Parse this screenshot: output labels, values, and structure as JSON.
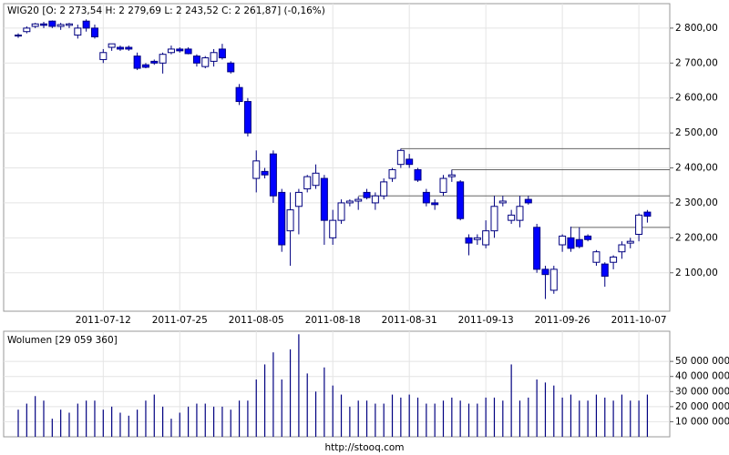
{
  "chart_data": [
    {
      "type": "candlestick",
      "title": "WIG20 [O: 2 273,54  H: 2 279,69  L: 2 243,52  C: 2 261,87] (-0,16%)",
      "categories": [
        null,
        null,
        null,
        null,
        null,
        null,
        null,
        null,
        null,
        null,
        "2011-07-12",
        null,
        null,
        null,
        null,
        null,
        null,
        null,
        null,
        "2011-07-25",
        null,
        null,
        null,
        null,
        null,
        null,
        null,
        null,
        "2011-08-05",
        null,
        null,
        null,
        null,
        null,
        null,
        null,
        null,
        "2011-08-18",
        null,
        null,
        null,
        null,
        null,
        null,
        null,
        null,
        "2011-08-31",
        null,
        null,
        null,
        null,
        null,
        null,
        null,
        null,
        "2011-09-13",
        null,
        null,
        null,
        null,
        null,
        null,
        null,
        null,
        "2011-09-26",
        null,
        null,
        null,
        null,
        null,
        null,
        null,
        null,
        "2011-10-07",
        null
      ],
      "open": [
        2778,
        2790,
        2805,
        2812,
        2820,
        2805,
        2808,
        2780,
        2820,
        2800,
        2710,
        2745,
        2745,
        2745,
        2720,
        2695,
        2705,
        2700,
        2730,
        2740,
        2740,
        2720,
        2690,
        2705,
        2740,
        2700,
        2630,
        2590,
        2370,
        2390,
        2440,
        2330,
        2220,
        2290,
        2340,
        2350,
        2370,
        2200,
        2250,
        2300,
        2305,
        2330,
        2300,
        2320,
        2370,
        2410,
        2425,
        2395,
        2330,
        2300,
        2330,
        2375,
        2360,
        2200,
        2195,
        2180,
        2220,
        2300,
        2250,
        2250,
        2310,
        2230,
        2110,
        2050,
        2180,
        2200,
        2195,
        2205,
        2130,
        2125,
        2130,
        2160,
        2185,
        2210,
        2273.54
      ],
      "high": [
        2785,
        2805,
        2815,
        2818,
        2822,
        2815,
        2815,
        2810,
        2825,
        2810,
        2740,
        2755,
        2750,
        2750,
        2730,
        2700,
        2710,
        2730,
        2750,
        2745,
        2745,
        2725,
        2720,
        2740,
        2755,
        2705,
        2640,
        2600,
        2450,
        2400,
        2450,
        2340,
        2330,
        2340,
        2380,
        2410,
        2380,
        2280,
        2310,
        2310,
        2318,
        2340,
        2330,
        2370,
        2400,
        2455,
        2440,
        2400,
        2340,
        2310,
        2380,
        2395,
        2365,
        2210,
        2210,
        2250,
        2320,
        2320,
        2280,
        2320,
        2320,
        2240,
        2120,
        2120,
        2210,
        2232,
        2230,
        2210,
        2165,
        2130,
        2150,
        2190,
        2200,
        2270,
        2279.69
      ],
      "low": [
        2772,
        2785,
        2800,
        2800,
        2800,
        2795,
        2800,
        2770,
        2790,
        2770,
        2700,
        2735,
        2735,
        2735,
        2680,
        2685,
        2695,
        2670,
        2725,
        2730,
        2725,
        2690,
        2685,
        2690,
        2710,
        2670,
        2580,
        2490,
        2330,
        2370,
        2300,
        2160,
        2120,
        2210,
        2330,
        2340,
        2180,
        2180,
        2240,
        2290,
        2280,
        2310,
        2280,
        2310,
        2360,
        2400,
        2400,
        2360,
        2290,
        2280,
        2320,
        2360,
        2250,
        2150,
        2180,
        2170,
        2200,
        2290,
        2240,
        2230,
        2295,
        2100,
        2025,
        2040,
        2160,
        2160,
        2170,
        2190,
        2120,
        2060,
        2110,
        2140,
        2170,
        2190,
        2243.52
      ],
      "close": [
        2780,
        2800,
        2812,
        2808,
        2805,
        2810,
        2812,
        2800,
        2800,
        2775,
        2730,
        2755,
        2740,
        2740,
        2685,
        2688,
        2700,
        2725,
        2740,
        2735,
        2727,
        2700,
        2715,
        2730,
        2715,
        2675,
        2590,
        2500,
        2420,
        2380,
        2320,
        2180,
        2280,
        2330,
        2375,
        2385,
        2250,
        2250,
        2300,
        2305,
        2310,
        2315,
        2320,
        2360,
        2395,
        2450,
        2410,
        2365,
        2300,
        2295,
        2370,
        2380,
        2255,
        2185,
        2200,
        2220,
        2290,
        2305,
        2265,
        2290,
        2300,
        2110,
        2095,
        2110,
        2205,
        2170,
        2175,
        2195,
        2160,
        2090,
        2145,
        2180,
        2190,
        2265,
        2261.87
      ],
      "levels": [
        2455,
        2395,
        2320,
        2230
      ],
      "up_color": "#ffffff",
      "down_color": "#0000ff",
      "line_color": "#000080",
      "ylim": [
        1990,
        2870
      ],
      "yticks": [
        {
          "value": 2100,
          "label": "2 100,00"
        },
        {
          "value": 2200,
          "label": "2 200,00"
        },
        {
          "value": 2300,
          "label": "2 300,00"
        },
        {
          "value": 2400,
          "label": "2 400,00"
        },
        {
          "value": 2500,
          "label": "2 500,00"
        },
        {
          "value": 2600,
          "label": "2 600,00"
        },
        {
          "value": 2700,
          "label": "2 700,00"
        },
        {
          "value": 2800,
          "label": "2 800,00"
        }
      ],
      "grid": true
    },
    {
      "type": "bar",
      "title": "Wolumen [29 059 360]",
      "color": "#000080",
      "values": [
        18000000,
        22000000,
        27000000,
        24000000,
        12000000,
        18000000,
        16000000,
        22000000,
        24000000,
        24000000,
        18000000,
        20000000,
        16000000,
        14000000,
        18000000,
        24000000,
        28000000,
        20000000,
        12000000,
        16000000,
        20000000,
        22000000,
        22000000,
        20000000,
        20000000,
        18000000,
        24000000,
        24000000,
        38000000,
        48000000,
        56000000,
        38000000,
        58000000,
        68000000,
        42000000,
        30000000,
        46000000,
        34000000,
        28000000,
        20000000,
        24000000,
        24000000,
        22000000,
        22000000,
        28000000,
        26000000,
        28000000,
        26000000,
        22000000,
        22000000,
        24000000,
        26000000,
        24000000,
        22000000,
        22000000,
        26000000,
        26000000,
        24000000,
        48000000,
        24000000,
        26000000,
        38000000,
        36000000,
        34000000,
        26000000,
        28000000,
        24000000,
        24000000,
        28000000,
        26000000,
        24000000,
        28000000,
        24000000,
        24000000,
        28000000
      ],
      "ylim": [
        0,
        70000000
      ],
      "yticks": [
        {
          "value": 10000000,
          "label": "10 000 000"
        },
        {
          "value": 20000000,
          "label": "20 000 000"
        },
        {
          "value": 30000000,
          "label": "30 000 000"
        },
        {
          "value": 40000000,
          "label": "40 000 000"
        },
        {
          "value": 50000000,
          "label": "50 000 000"
        }
      ],
      "grid": true
    }
  ],
  "footer": "http://stooq.com"
}
